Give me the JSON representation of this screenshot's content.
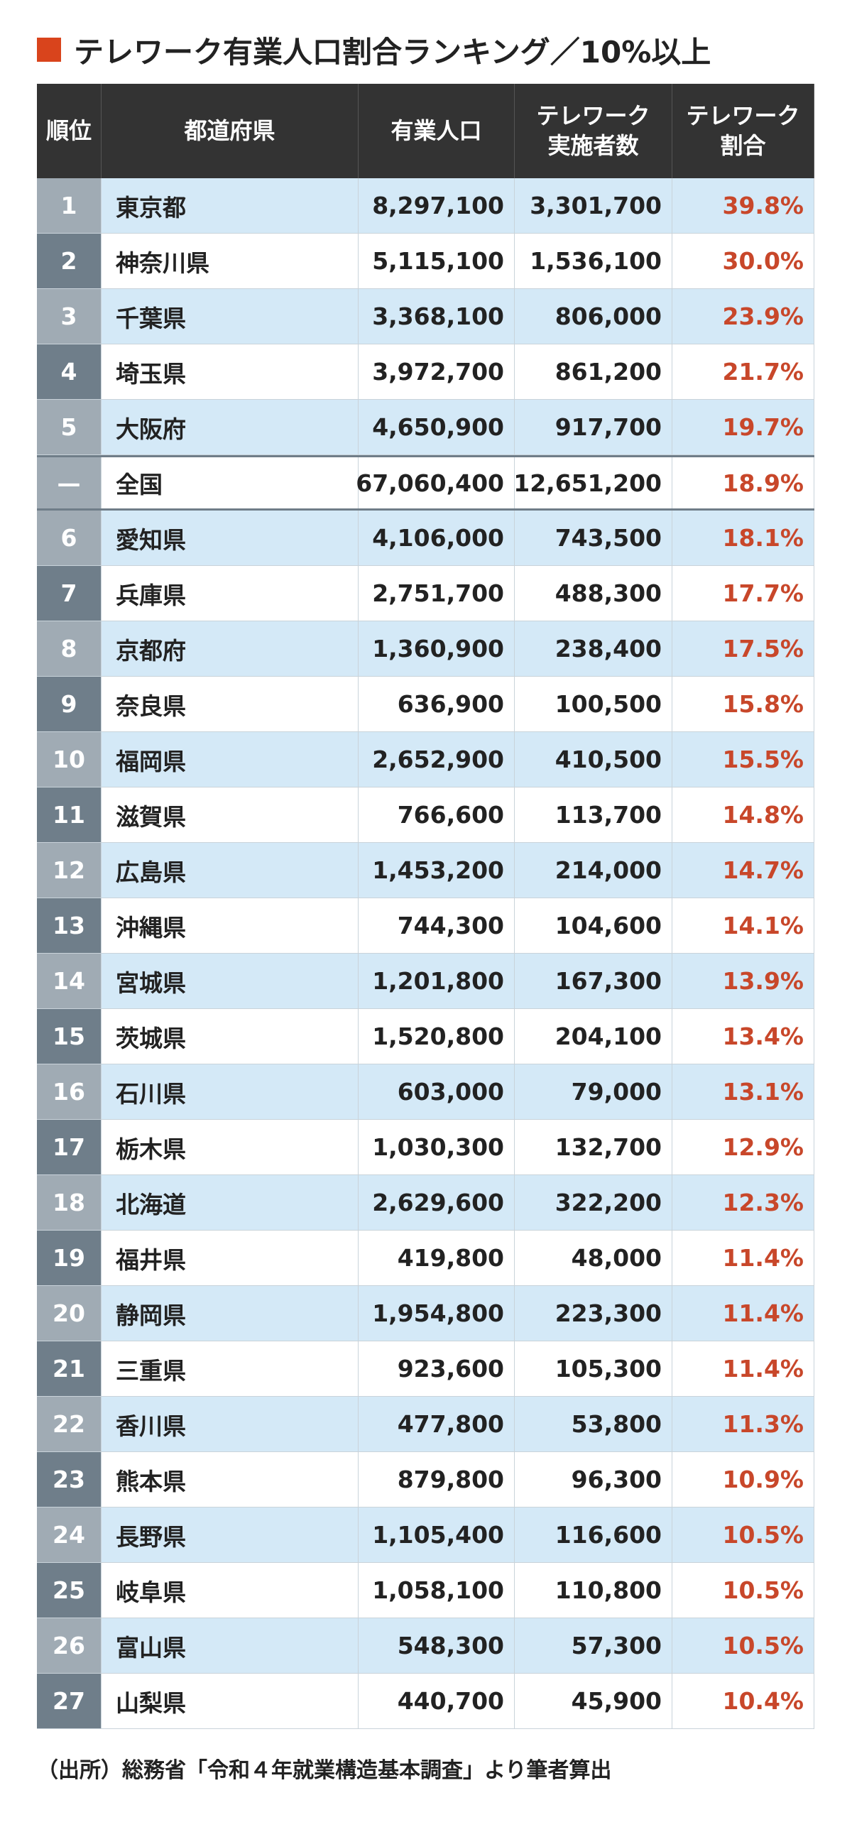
{
  "title": "テレワーク有業人口割合ランキング／10%以上",
  "table": {
    "headers": [
      [
        "順位"
      ],
      [
        "都道府県"
      ],
      [
        "有業人口"
      ],
      [
        "テレワーク",
        "実施者数"
      ],
      [
        "テレワーク",
        "割合"
      ]
    ],
    "rows": [
      [
        "1",
        "東京都",
        "8,297,100",
        "3,301,700",
        "39.8%"
      ],
      [
        "2",
        "神奈川県",
        "5,115,100",
        "1,536,100",
        "30.0%"
      ],
      [
        "3",
        "千葉県",
        "3,368,100",
        "806,000",
        "23.9%"
      ],
      [
        "4",
        "埼玉県",
        "3,972,700",
        "861,200",
        "21.7%"
      ],
      [
        "5",
        "大阪府",
        "4,650,900",
        "917,700",
        "19.7%"
      ],
      [
        "—",
        "全国",
        "67,060,400",
        "12,651,200",
        "18.9%"
      ],
      [
        "6",
        "愛知県",
        "4,106,000",
        "743,500",
        "18.1%"
      ],
      [
        "7",
        "兵庫県",
        "2,751,700",
        "488,300",
        "17.7%"
      ],
      [
        "8",
        "京都府",
        "1,360,900",
        "238,400",
        "17.5%"
      ],
      [
        "9",
        "奈良県",
        "636,900",
        "100,500",
        "15.8%"
      ],
      [
        "10",
        "福岡県",
        "2,652,900",
        "410,500",
        "15.5%"
      ],
      [
        "11",
        "滋賀県",
        "766,600",
        "113,700",
        "14.8%"
      ],
      [
        "12",
        "広島県",
        "1,453,200",
        "214,000",
        "14.7%"
      ],
      [
        "13",
        "沖縄県",
        "744,300",
        "104,600",
        "14.1%"
      ],
      [
        "14",
        "宮城県",
        "1,201,800",
        "167,300",
        "13.9%"
      ],
      [
        "15",
        "茨城県",
        "1,520,800",
        "204,100",
        "13.4%"
      ],
      [
        "16",
        "石川県",
        "603,000",
        "79,000",
        "13.1%"
      ],
      [
        "17",
        "栃木県",
        "1,030,300",
        "132,700",
        "12.9%"
      ],
      [
        "18",
        "北海道",
        "2,629,600",
        "322,200",
        "12.3%"
      ],
      [
        "19",
        "福井県",
        "419,800",
        "48,000",
        "11.4%"
      ],
      [
        "20",
        "静岡県",
        "1,954,800",
        "223,300",
        "11.4%"
      ],
      [
        "21",
        "三重県",
        "923,600",
        "105,300",
        "11.4%"
      ],
      [
        "22",
        "香川県",
        "477,800",
        "53,800",
        "11.3%"
      ],
      [
        "23",
        "熊本県",
        "879,800",
        "96,300",
        "10.9%"
      ],
      [
        "24",
        "長野県",
        "1,105,400",
        "116,600",
        "10.5%"
      ],
      [
        "25",
        "岐阜県",
        "1,058,100",
        "110,800",
        "10.5%"
      ],
      [
        "26",
        "富山県",
        "548,300",
        "57,300",
        "10.5%"
      ],
      [
        "27",
        "山梨県",
        "440,700",
        "45,900",
        "10.4%"
      ]
    ]
  },
  "source": "（出所）総務省「令和４年就業構造基本調査」より筆者算出"
}
